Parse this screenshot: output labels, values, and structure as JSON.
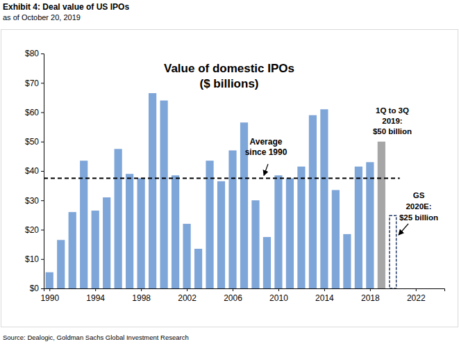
{
  "chart_data": {
    "type": "bar",
    "header": "Exhibit 4: Deal value of US IPOs",
    "subtitle": "as of October 20, 2019",
    "title": [
      "Value of domestic IPOs",
      "($ billions)"
    ],
    "source": "Source: Dealogic, Goldman Sachs Global Investment Research",
    "x": [
      1990,
      1991,
      1992,
      1993,
      1994,
      1995,
      1996,
      1997,
      1998,
      1999,
      2000,
      2001,
      2002,
      2003,
      2004,
      2005,
      2006,
      2007,
      2008,
      2009,
      2010,
      2011,
      2012,
      2013,
      2014,
      2015,
      2016,
      2017,
      2018,
      2019,
      2020
    ],
    "series": [
      {
        "color": "#7fa6d8",
        "values": [
          5.5,
          16.5,
          26,
          43.5,
          26.5,
          31,
          47.5,
          39,
          37.5,
          66.5,
          64,
          38.5,
          22,
          13.5,
          43.5,
          36.5,
          47,
          56.5,
          30,
          17.5,
          38.5,
          37.5,
          41.5,
          59,
          61,
          33.5,
          18.5,
          41.5,
          43,
          null,
          null
        ]
      },
      {
        "color": "#a6a6a6",
        "values": [
          null,
          null,
          null,
          null,
          null,
          null,
          null,
          null,
          null,
          null,
          null,
          null,
          null,
          null,
          null,
          null,
          null,
          null,
          null,
          null,
          null,
          null,
          null,
          null,
          null,
          null,
          null,
          null,
          null,
          50,
          null
        ]
      },
      {
        "color": "#1f3864",
        "line_style": "dashed",
        "values": [
          null,
          null,
          null,
          null,
          null,
          null,
          null,
          null,
          null,
          null,
          null,
          null,
          null,
          null,
          null,
          null,
          null,
          null,
          null,
          null,
          null,
          null,
          null,
          null,
          null,
          null,
          null,
          null,
          null,
          null,
          25
        ]
      }
    ],
    "xlim": [
      1989.5,
      2024.5
    ],
    "xticks": [
      1990,
      1994,
      1998,
      2002,
      2006,
      2010,
      2014,
      2018,
      2022
    ],
    "ylim": [
      0,
      80
    ],
    "yticks": [
      {
        "value": 0,
        "label": "$0"
      },
      {
        "value": 10,
        "label": "$10"
      },
      {
        "value": 20,
        "label": "$20"
      },
      {
        "value": 30,
        "label": "$30"
      },
      {
        "value": 40,
        "label": "$40"
      },
      {
        "value": 50,
        "label": "$50"
      },
      {
        "value": 60,
        "label": "$60"
      },
      {
        "value": 70,
        "label": "$70"
      },
      {
        "value": 80,
        "label": "$80"
      }
    ],
    "grid": false,
    "reference_line": {
      "value": 37.5,
      "label": [
        "Average",
        "since 1990"
      ],
      "line_style": "dashed"
    },
    "annotations": [
      {
        "text": [
          "1Q to 3Q",
          "2019:",
          "$50 billion"
        ]
      },
      {
        "text": [
          "GS",
          "2020E:",
          "$25 billion"
        ]
      }
    ]
  }
}
